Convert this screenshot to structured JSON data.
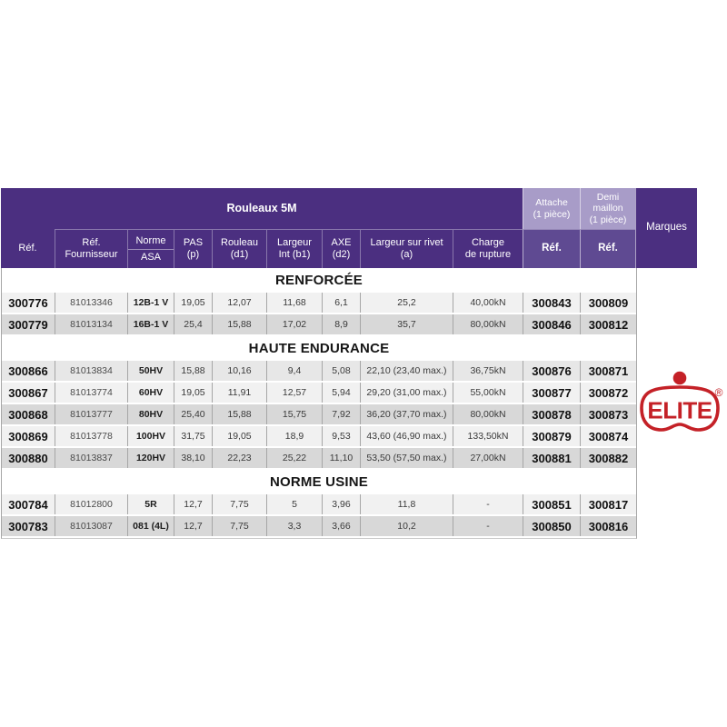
{
  "colors": {
    "header_dark_purple": "#4b2f80",
    "header_light_purple": "#a89cc8",
    "header_medium_purple": "#5f4a92",
    "row_light": "#f1f1f1",
    "row_mid": "#e7e7e7",
    "row_dark": "#d8d8d8",
    "border_gray": "#a6a6a6",
    "logo_red": "#c42127"
  },
  "table": {
    "group_header": {
      "rouleaux": "Rouleaux 5M",
      "attache_title": "Attache",
      "attache_sub": "(1 pièce)",
      "demi_title": "Demi maillon",
      "demi_sub": "(1 pièce)",
      "marques": "Marques"
    },
    "columns": [
      {
        "key": "ref",
        "line1": "Réf.",
        "line2": ""
      },
      {
        "key": "ref_fournisseur",
        "line1": "Réf.",
        "line2": "Fournisseur"
      },
      {
        "key": "norme_asa",
        "line1": "Norme",
        "line2": "ASA"
      },
      {
        "key": "pas_p",
        "line1": "PAS",
        "line2": "(p)"
      },
      {
        "key": "rouleau_d1",
        "line1": "Rouleau",
        "line2": "(d1)"
      },
      {
        "key": "largeur_int_b1",
        "line1": "Largeur",
        "line2": "Int (b1)"
      },
      {
        "key": "axe_d2",
        "line1": "AXE",
        "line2": "(d2)"
      },
      {
        "key": "largeur_sur_rivet_a",
        "line1": "Largeur sur rivet",
        "line2": "(a)"
      },
      {
        "key": "charge_rupture",
        "line1": "Charge",
        "line2": "de rupture"
      },
      {
        "key": "ref_attache",
        "line1": "Réf.",
        "line2": ""
      },
      {
        "key": "ref_demi_maillon",
        "line1": "Réf.",
        "line2": ""
      }
    ],
    "sections": [
      {
        "title": "RENFORCÉE",
        "rows": [
          {
            "bg": "light",
            "cells": [
              "300776",
              "81013346",
              "12B-1 V",
              "19,05",
              "12,07",
              "11,68",
              "6,1",
              "25,2",
              "40,00kN",
              "300843",
              "300809"
            ]
          },
          {
            "bg": "dark",
            "cells": [
              "300779",
              "81013134",
              "16B-1 V",
              "25,4",
              "15,88",
              "17,02",
              "8,9",
              "35,7",
              "80,00kN",
              "300846",
              "300812"
            ]
          }
        ]
      },
      {
        "title": "HAUTE ENDURANCE",
        "rows": [
          {
            "bg": "mid",
            "cells": [
              "300866",
              "81013834",
              "50HV",
              "15,88",
              "10,16",
              "9,4",
              "5,08",
              "22,10 (23,40 max.)",
              "36,75kN",
              "300876",
              "300871"
            ]
          },
          {
            "bg": "light",
            "cells": [
              "300867",
              "81013774",
              "60HV",
              "19,05",
              "11,91",
              "12,57",
              "5,94",
              "29,20 (31,00 max.)",
              "55,00kN",
              "300877",
              "300872"
            ]
          },
          {
            "bg": "dark",
            "cells": [
              "300868",
              "81013777",
              "80HV",
              "25,40",
              "15,88",
              "15,75",
              "7,92",
              "36,20 (37,70 max.)",
              "80,00kN",
              "300878",
              "300873"
            ]
          },
          {
            "bg": "light",
            "cells": [
              "300869",
              "81013778",
              "100HV",
              "31,75",
              "19,05",
              "18,9",
              "9,53",
              "43,60 (46,90 max.)",
              "133,50kN",
              "300879",
              "300874"
            ]
          },
          {
            "bg": "dark",
            "cells": [
              "300880",
              "81013837",
              "120HV",
              "38,10",
              "22,23",
              "25,22",
              "11,10",
              "53,50 (57,50 max.)",
              "27,00kN",
              "300881",
              "300882"
            ]
          }
        ]
      },
      {
        "title": "NORME USINE",
        "rows": [
          {
            "bg": "light",
            "cells": [
              "300784",
              "81012800",
              "5R",
              "12,7",
              "7,75",
              "5",
              "3,96",
              "11,8",
              "-",
              "300851",
              "300817"
            ]
          },
          {
            "bg": "dark",
            "cells": [
              "300783",
              "81013087",
              "081 (4L)",
              "12,7",
              "7,75",
              "3,3",
              "3,66",
              "10,2",
              "-",
              "300850",
              "300816"
            ]
          }
        ]
      }
    ]
  },
  "logo": {
    "brand": "ELITE",
    "registered": "®"
  }
}
